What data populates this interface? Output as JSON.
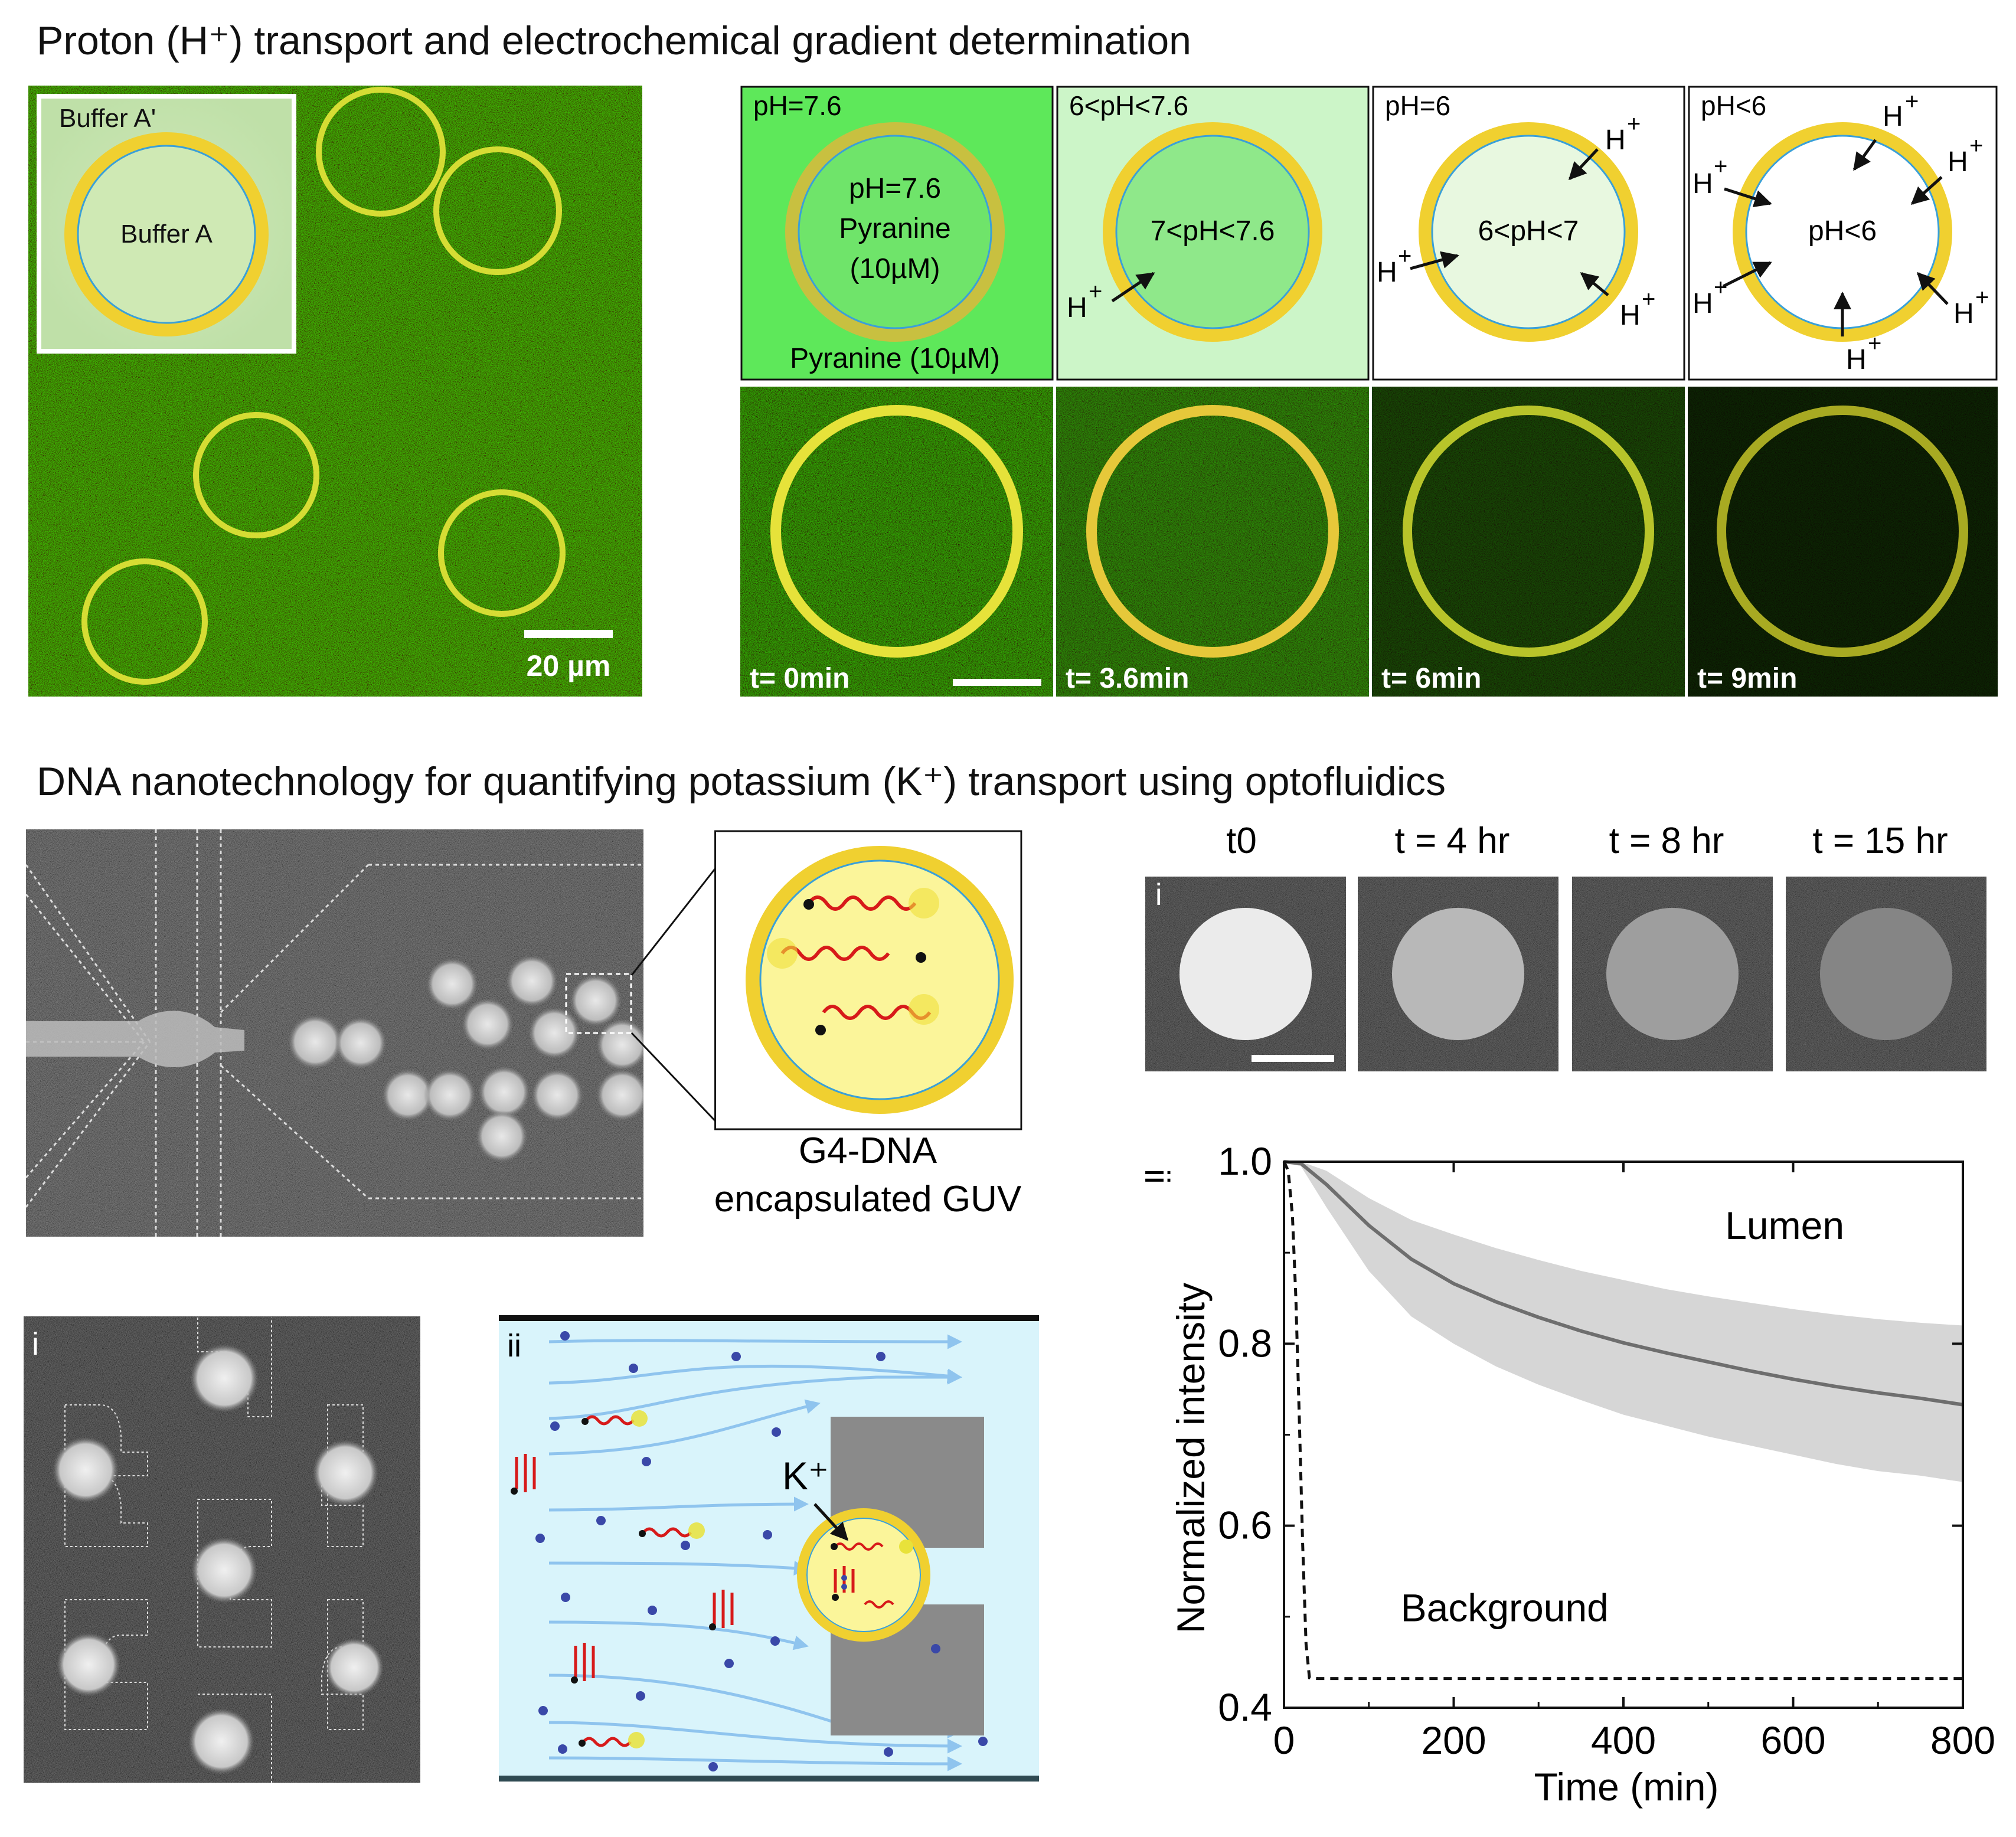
{
  "section1": {
    "title": "Proton (H⁺) transport and electrochemical gradient determination",
    "inset": {
      "outer_label": "Buffer A'",
      "inner_label": "Buffer A"
    },
    "scalebar_label": "20 µm",
    "schematics": [
      {
        "outer": "pH=7.6",
        "inner": [
          "pH=7.6",
          "Pyranine",
          "(10µM)"
        ],
        "bottom": "Pyranine (10µM)"
      },
      {
        "outer": "6<pH<7.6",
        "inner": [
          "7<pH<7.6"
        ]
      },
      {
        "outer": "pH=6",
        "inner": [
          "6<pH<7"
        ]
      },
      {
        "outer": "pH<6",
        "inner": [
          "pH<6"
        ]
      }
    ],
    "proton_label": "H",
    "proton_charge": "+",
    "timepoints": [
      "t= 0min",
      "t= 3.6min",
      "t= 6min",
      "t= 9min"
    ],
    "colors": {
      "background_green": "#2e7d1a",
      "membrane_yellow": "#e8e23a"
    }
  },
  "section2": {
    "title": "DNA nanotechnology for quantifying potassium (K⁺) transport using optofluidics",
    "guv_caption": [
      "G4-DNA",
      "encapsulated GUV"
    ],
    "time_series": {
      "panel_label": "i",
      "labels": [
        "t0",
        "t = 4 hr",
        "t = 8 hr",
        "t = 15 hr"
      ],
      "brightness": [
        0.92,
        0.72,
        0.62,
        0.52
      ]
    },
    "trap_panels": {
      "panel_i_label": "i",
      "panel_ii_label": "ii",
      "ion_label": "K⁺"
    }
  },
  "chart_data": {
    "type": "line",
    "panel_label": "ii",
    "xlabel": "Time (min)",
    "ylabel": "Normalized intensity",
    "xlim": [
      0,
      800
    ],
    "ylim": [
      0.4,
      1.0
    ],
    "xticks": [
      0,
      200,
      400,
      600,
      800
    ],
    "yticks": [
      0.4,
      0.6,
      0.8,
      1.0
    ],
    "ytick_labels": [
      "0.4",
      "0.6",
      "0.8",
      "1.0"
    ],
    "series": [
      {
        "name": "Lumen",
        "style": "solid",
        "x": [
          0,
          20,
          50,
          100,
          150,
          200,
          250,
          300,
          350,
          400,
          450,
          500,
          550,
          600,
          650,
          700,
          750,
          800
        ],
        "y": [
          1.0,
          0.998,
          0.975,
          0.93,
          0.893,
          0.866,
          0.846,
          0.829,
          0.814,
          0.801,
          0.79,
          0.78,
          0.77,
          0.761,
          0.753,
          0.746,
          0.74,
          0.733
        ],
        "y_upper": [
          1.0,
          1.0,
          0.99,
          0.96,
          0.936,
          0.92,
          0.905,
          0.892,
          0.88,
          0.87,
          0.86,
          0.852,
          0.845,
          0.838,
          0.832,
          0.827,
          0.823,
          0.82
        ],
        "y_lower": [
          1.0,
          0.995,
          0.95,
          0.88,
          0.83,
          0.8,
          0.775,
          0.755,
          0.738,
          0.722,
          0.71,
          0.698,
          0.688,
          0.678,
          0.668,
          0.66,
          0.655,
          0.648
        ]
      },
      {
        "name": "Background",
        "style": "dashed",
        "x": [
          0,
          5,
          10,
          14,
          18,
          22,
          26,
          30,
          40,
          100,
          200,
          400,
          600,
          800
        ],
        "y": [
          1.0,
          0.99,
          0.94,
          0.85,
          0.72,
          0.58,
          0.47,
          0.433,
          0.432,
          0.432,
          0.432,
          0.432,
          0.432,
          0.432
        ]
      }
    ],
    "annotations": [
      "Lumen",
      "Background"
    ]
  }
}
